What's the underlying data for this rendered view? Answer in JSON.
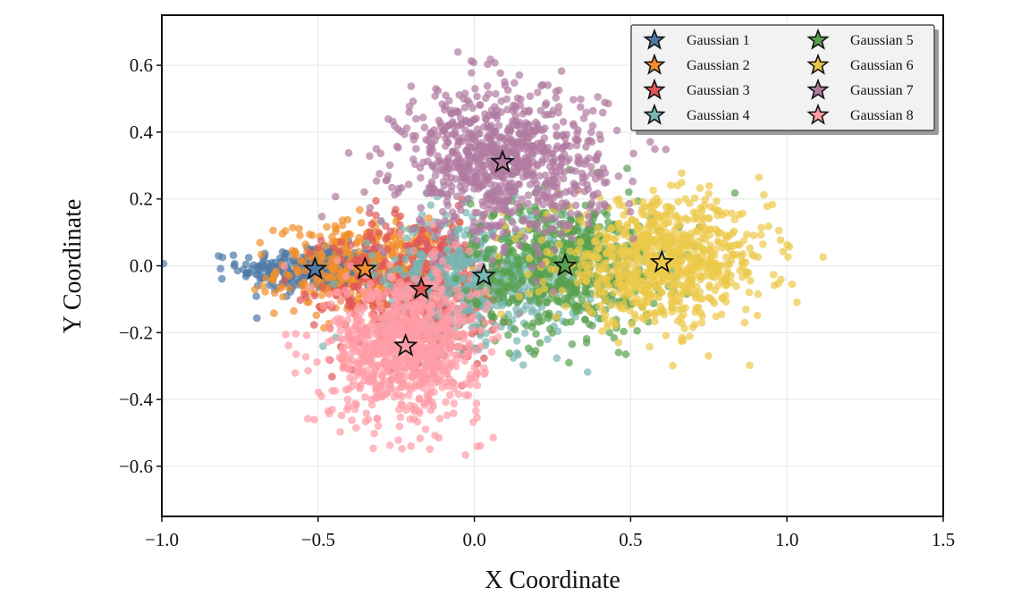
{
  "chart_data": {
    "type": "scatter",
    "title": "",
    "xlabel": "X Coordinate",
    "ylabel": "Y Coordinate",
    "xlim": [
      -1.0,
      1.5
    ],
    "ylim": [
      -0.75,
      0.75
    ],
    "x_ticks": [
      -1.0,
      -0.5,
      0.0,
      0.5,
      1.0,
      1.5
    ],
    "x_tick_labels": [
      "−1.0",
      "−0.5",
      "0.0",
      "0.5",
      "1.0",
      "1.5"
    ],
    "y_ticks": [
      -0.6,
      -0.4,
      -0.2,
      0.0,
      0.2,
      0.4,
      0.6
    ],
    "y_tick_labels": [
      "−0.6",
      "−0.4",
      "−0.2",
      "0.0",
      "0.2",
      "0.4",
      "0.6"
    ],
    "grid": true,
    "legend_position": "top-right",
    "legend_columns": 2,
    "series": [
      {
        "name": "Gaussian 1",
        "color": "#4e79a7",
        "center": [
          -0.51,
          -0.01
        ],
        "spread": [
          0.12,
          0.035
        ],
        "count": 320
      },
      {
        "name": "Gaussian 2",
        "color": "#f28e2b",
        "center": [
          -0.35,
          -0.01
        ],
        "spread": [
          0.14,
          0.07
        ],
        "count": 420
      },
      {
        "name": "Gaussian 3",
        "color": "#e15759",
        "center": [
          -0.17,
          -0.07
        ],
        "spread": [
          0.14,
          0.11
        ],
        "count": 500
      },
      {
        "name": "Gaussian 4",
        "color": "#76b7b2",
        "center": [
          0.03,
          -0.03
        ],
        "spread": [
          0.16,
          0.1
        ],
        "count": 500
      },
      {
        "name": "Gaussian 5",
        "color": "#59a14f",
        "center": [
          0.29,
          0.0
        ],
        "spread": [
          0.15,
          0.1
        ],
        "count": 650
      },
      {
        "name": "Gaussian 6",
        "color": "#edc948",
        "center": [
          0.6,
          0.01
        ],
        "spread": [
          0.17,
          0.09
        ],
        "count": 800
      },
      {
        "name": "Gaussian 7",
        "color": "#b07aa1",
        "center": [
          0.09,
          0.31
        ],
        "spread": [
          0.16,
          0.11
        ],
        "count": 850
      },
      {
        "name": "Gaussian 8",
        "color": "#ff9da7",
        "center": [
          -0.22,
          -0.24
        ],
        "spread": [
          0.12,
          0.11
        ],
        "count": 850
      }
    ]
  }
}
